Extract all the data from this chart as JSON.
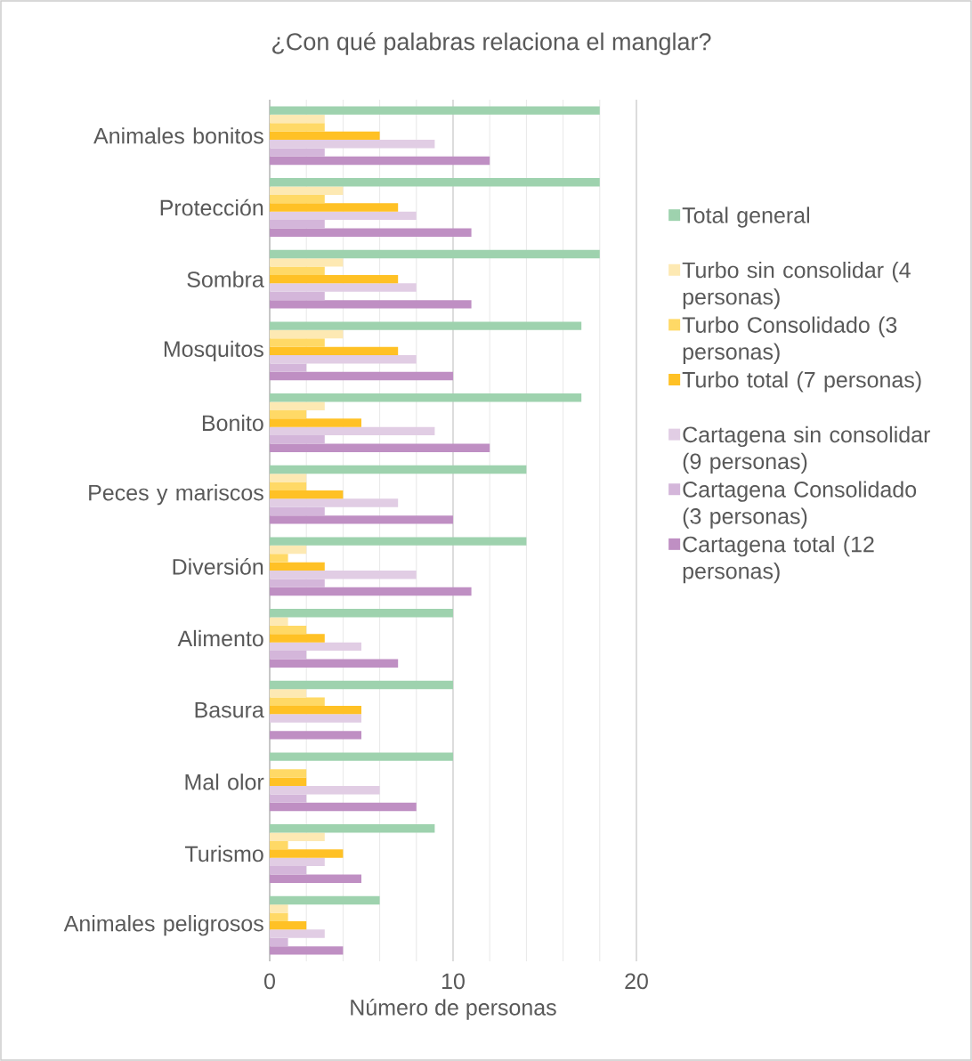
{
  "chart_data": {
    "type": "bar",
    "orientation": "horizontal",
    "title": "¿Con qué palabras relaciona el manglar?",
    "xlabel": "Número de personas",
    "categories": [
      "Animales bonitos",
      "Protección",
      "Sombra",
      "Mosquitos",
      "Bonito",
      "Peces y mariscos",
      "Diversión",
      "Alimento",
      "Basura",
      "Mal olor",
      "Turismo",
      "Animales peligrosos"
    ],
    "series": [
      {
        "name": "Total general",
        "color": "#9ed2ae",
        "values": [
          18,
          18,
          18,
          17,
          17,
          14,
          14,
          10,
          10,
          10,
          9,
          6
        ]
      },
      {
        "name": "Turbo sin consolidar (4 personas)",
        "color": "#fde9b3",
        "values": [
          3,
          4,
          4,
          4,
          3,
          2,
          2,
          1,
          2,
          0,
          3,
          1
        ]
      },
      {
        "name": "Turbo Consolidado (3 personas)",
        "color": "#ffd966",
        "values": [
          3,
          3,
          3,
          3,
          2,
          2,
          1,
          2,
          3,
          2,
          1,
          1
        ]
      },
      {
        "name": "Turbo total (7 personas)",
        "color": "#ffc125",
        "values": [
          6,
          7,
          7,
          7,
          5,
          4,
          3,
          3,
          5,
          2,
          4,
          2
        ]
      },
      {
        "name": "Cartagena sin consolidar (9 personas)",
        "color": "#e1cde4",
        "values": [
          9,
          8,
          8,
          8,
          9,
          7,
          8,
          5,
          5,
          6,
          3,
          3
        ]
      },
      {
        "name": "Cartagena Consolidado (3 personas)",
        "color": "#d4b6da",
        "values": [
          3,
          3,
          3,
          2,
          3,
          3,
          3,
          2,
          0,
          2,
          2,
          1
        ]
      },
      {
        "name": "Cartagena total (12 personas)",
        "color": "#bf8fc3",
        "values": [
          12,
          11,
          11,
          10,
          12,
          10,
          11,
          7,
          5,
          8,
          5,
          4
        ]
      }
    ],
    "xlim": [
      0,
      20
    ],
    "xticks": [
      0,
      10,
      20
    ],
    "grid": "x",
    "legend": "right"
  }
}
